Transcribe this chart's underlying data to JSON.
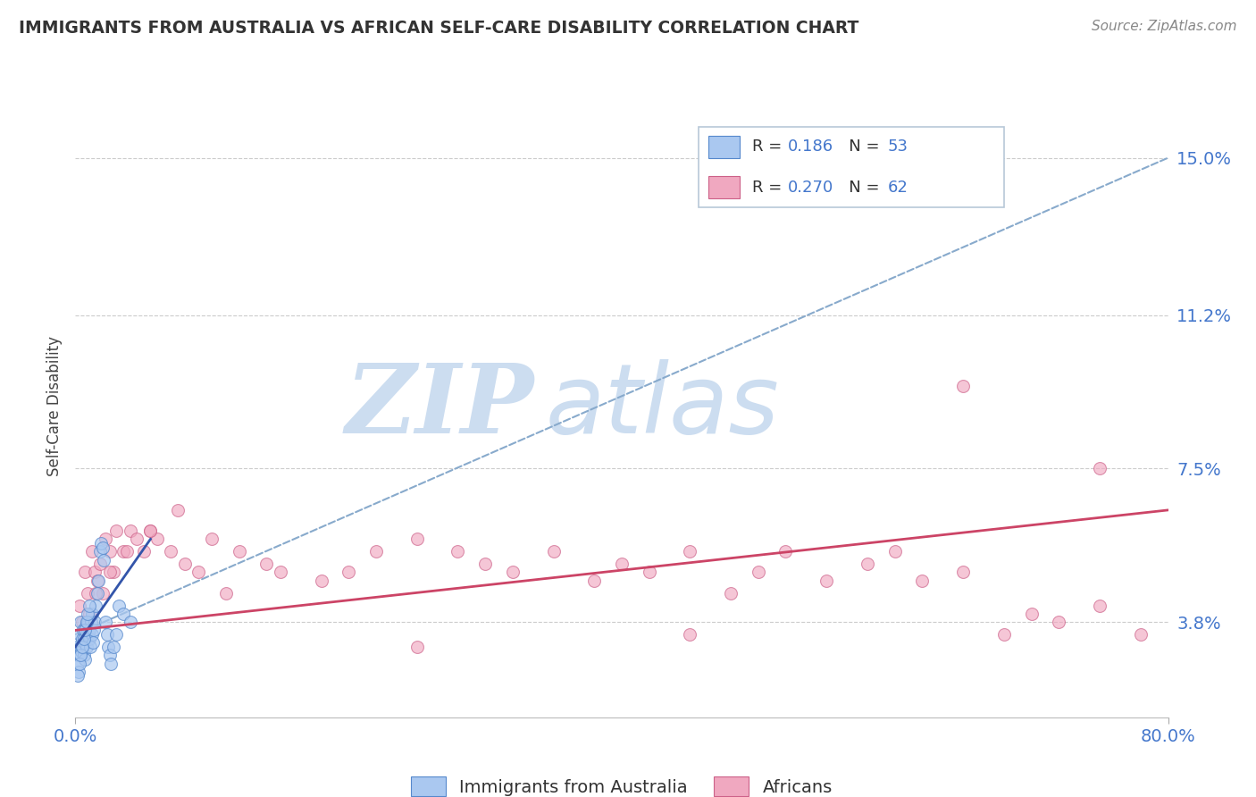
{
  "title": "IMMIGRANTS FROM AUSTRALIA VS AFRICAN SELF-CARE DISABILITY CORRELATION CHART",
  "source": "Source: ZipAtlas.com",
  "ylabel": "Self-Care Disability",
  "ytick_values": [
    3.8,
    7.5,
    11.2,
    15.0
  ],
  "ytick_labels": [
    "3.8%",
    "7.5%",
    "11.2%",
    "15.0%"
  ],
  "xlim": [
    0.0,
    80.0
  ],
  "ylim": [
    1.5,
    16.5
  ],
  "blue_x": [
    0.1,
    0.15,
    0.2,
    0.25,
    0.3,
    0.35,
    0.4,
    0.45,
    0.5,
    0.55,
    0.6,
    0.65,
    0.7,
    0.75,
    0.8,
    0.85,
    0.9,
    0.95,
    1.0,
    1.05,
    1.1,
    1.15,
    1.2,
    1.25,
    1.3,
    1.35,
    1.4,
    1.5,
    1.6,
    1.7,
    1.8,
    1.9,
    2.0,
    2.1,
    2.2,
    2.3,
    2.4,
    2.5,
    2.6,
    2.8,
    3.0,
    3.2,
    3.5,
    4.0,
    0.2,
    0.3,
    0.4,
    0.5,
    0.6,
    0.7,
    0.8,
    0.9,
    1.0
  ],
  "blue_y": [
    3.2,
    3.0,
    2.8,
    2.6,
    3.5,
    3.8,
    3.2,
    3.1,
    3.4,
    3.6,
    3.3,
    3.0,
    2.9,
    3.7,
    3.5,
    3.2,
    3.8,
    3.5,
    3.6,
    3.4,
    3.2,
    3.8,
    4.0,
    3.5,
    3.3,
    3.6,
    3.8,
    4.2,
    4.5,
    4.8,
    5.5,
    5.7,
    5.6,
    5.3,
    3.8,
    3.5,
    3.2,
    3.0,
    2.8,
    3.2,
    3.5,
    4.2,
    4.0,
    3.8,
    2.5,
    2.8,
    3.0,
    3.2,
    3.4,
    3.6,
    3.8,
    4.0,
    4.2
  ],
  "pink_x": [
    0.3,
    0.5,
    0.7,
    0.9,
    1.0,
    1.2,
    1.4,
    1.6,
    1.8,
    2.0,
    2.2,
    2.5,
    2.8,
    3.0,
    3.5,
    4.0,
    4.5,
    5.0,
    5.5,
    6.0,
    7.0,
    8.0,
    9.0,
    10.0,
    12.0,
    14.0,
    15.0,
    18.0,
    20.0,
    22.0,
    25.0,
    28.0,
    30.0,
    32.0,
    35.0,
    38.0,
    40.0,
    42.0,
    45.0,
    48.0,
    50.0,
    52.0,
    55.0,
    58.0,
    60.0,
    62.0,
    65.0,
    68.0,
    70.0,
    72.0,
    75.0,
    78.0,
    1.5,
    2.5,
    3.8,
    5.5,
    7.5,
    11.0,
    25.0,
    45.0,
    65.0,
    75.0
  ],
  "pink_y": [
    4.2,
    3.8,
    5.0,
    4.5,
    4.0,
    5.5,
    5.0,
    4.8,
    5.2,
    4.5,
    5.8,
    5.5,
    5.0,
    6.0,
    5.5,
    6.0,
    5.8,
    5.5,
    6.0,
    5.8,
    5.5,
    5.2,
    5.0,
    5.8,
    5.5,
    5.2,
    5.0,
    4.8,
    5.0,
    5.5,
    5.8,
    5.5,
    5.2,
    5.0,
    5.5,
    4.8,
    5.2,
    5.0,
    5.5,
    4.5,
    5.0,
    5.5,
    4.8,
    5.2,
    5.5,
    4.8,
    5.0,
    3.5,
    4.0,
    3.8,
    4.2,
    3.5,
    4.5,
    5.0,
    5.5,
    6.0,
    6.5,
    4.5,
    3.2,
    3.5,
    9.5,
    7.5
  ],
  "blue_color": "#aac8f0",
  "blue_edge": "#5588cc",
  "pink_color": "#f0a8c0",
  "pink_edge": "#cc6088",
  "blue_line_x": [
    0.0,
    5.5
  ],
  "blue_line_y": [
    3.2,
    5.8
  ],
  "blue_line_color": "#3355aa",
  "pink_line_x": [
    0.0,
    80.0
  ],
  "pink_line_y": [
    3.6,
    6.5
  ],
  "pink_line_color": "#cc4466",
  "dashed_line_x": [
    0.0,
    80.0
  ],
  "dashed_line_y": [
    3.5,
    15.0
  ],
  "dashed_line_color": "#88aacc",
  "legend_r1": "0.186",
  "legend_n1": "53",
  "legend_r2": "0.270",
  "legend_n2": "62",
  "legend_label1": "Immigrants from Australia",
  "legend_label2": "Africans",
  "legend_text_color": "#4477cc",
  "watermark_zip": "ZIP",
  "watermark_atlas": "atlas",
  "watermark_color": "#ccddf0",
  "bg_color": "#ffffff",
  "grid_color": "#cccccc",
  "tick_color": "#4477cc",
  "title_color": "#333333",
  "source_color": "#888888"
}
